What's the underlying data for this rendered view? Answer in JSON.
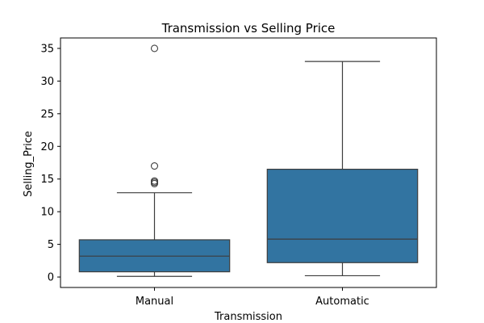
{
  "chart_data": {
    "type": "box",
    "title": "Transmission vs Selling Price",
    "xlabel": "Transmission",
    "ylabel": "Selling_Price",
    "ylim": [
      -1.6,
      36.6
    ],
    "yticks": [
      0,
      5,
      10,
      15,
      20,
      25,
      30,
      35
    ],
    "categories": [
      "Manual",
      "Automatic"
    ],
    "box_color": "#3274a1",
    "edge_color": "#3d3d3d",
    "grid": false,
    "legend": "none",
    "boxes": [
      {
        "category": "Manual",
        "whisker_low": 0.1,
        "q1": 0.8,
        "median": 3.2,
        "q3": 5.7,
        "whisker_high": 12.9,
        "outliers": [
          14.3,
          14.5,
          14.7,
          17.0,
          35.0
        ]
      },
      {
        "category": "Automatic",
        "whisker_low": 0.2,
        "q1": 2.2,
        "median": 5.8,
        "q3": 16.5,
        "whisker_high": 33.0,
        "outliers": []
      }
    ]
  }
}
